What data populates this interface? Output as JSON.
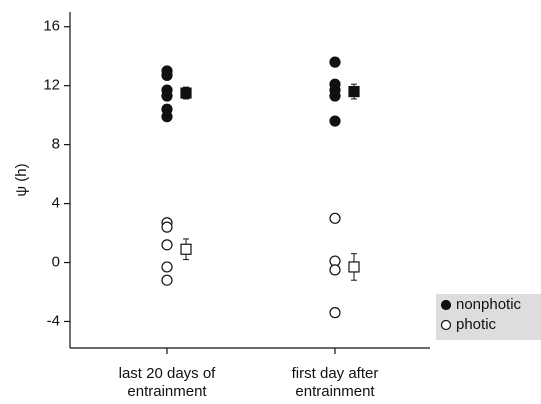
{
  "chart_data": {
    "type": "strip",
    "y_label": "ψ (h)",
    "categories": [
      [
        "last 20 days of",
        "entrainment"
      ],
      [
        "first day after",
        "entrainment"
      ]
    ],
    "ylim": [
      -5.8,
      17
    ],
    "yticks": [
      -4,
      0,
      4,
      8,
      12,
      16
    ],
    "legend": "lower-right",
    "series": [
      {
        "name": "nonphotic",
        "color": "#111",
        "filled": true,
        "points": [
          [
            13.0,
            12.7,
            11.7,
            11.3,
            10.4,
            9.9
          ],
          [
            13.6,
            12.1,
            11.7,
            11.3,
            9.6
          ]
        ],
        "means": [
          11.5,
          11.6
        ],
        "errors": [
          0.4,
          0.5
        ]
      },
      {
        "name": "photic",
        "color": "#111",
        "filled": false,
        "points": [
          [
            2.7,
            2.4,
            1.2,
            -0.3,
            -1.2
          ],
          [
            3.0,
            0.1,
            -0.5,
            -3.4
          ]
        ],
        "means": [
          0.9,
          -0.3
        ],
        "errors": [
          0.7,
          0.9
        ]
      }
    ]
  }
}
